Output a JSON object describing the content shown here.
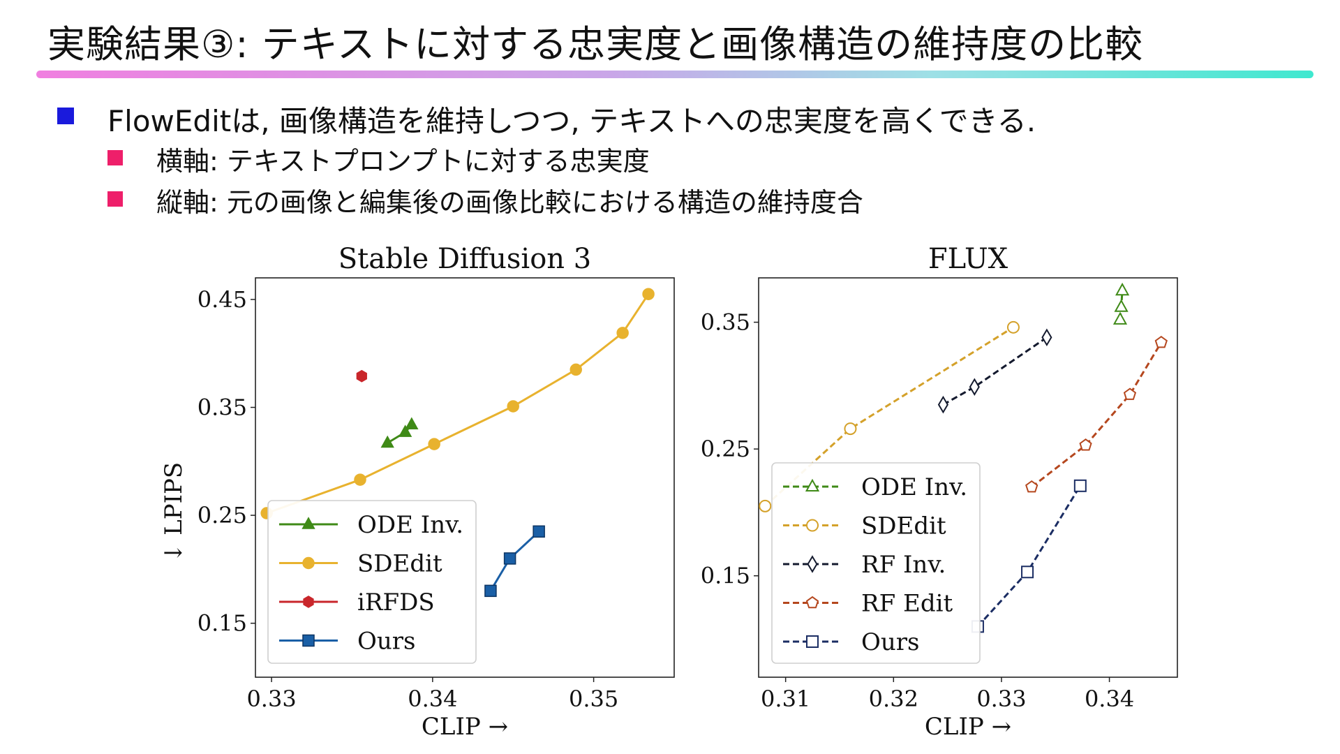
{
  "slide": {
    "title": "実験結果③: テキストに対する忠実度と画像構造の維持度の比較",
    "bullets": [
      "FlowEditは, 画像構造を維持しつつ, テキストへの忠実度を高くできる.",
      "横軸: テキストプロンプトに対する忠実度",
      "縦軸:  元の画像と編集後の画像比較における構造の維持度合"
    ]
  },
  "chart_data": [
    {
      "type": "line",
      "title": "Stable Diffusion 3",
      "xlabel": "CLIP →",
      "ylabel": "↓ LPIPS",
      "xlim": [
        0.329,
        0.355
      ],
      "ylim": [
        0.1,
        0.47
      ],
      "xticks": [
        0.33,
        0.34,
        0.35
      ],
      "yticks": [
        0.15,
        0.25,
        0.35,
        0.45
      ],
      "xtick_labels": [
        "0.33",
        "0.34",
        "0.35"
      ],
      "ytick_labels": [
        "0.15",
        "0.25",
        "0.35",
        "0.45"
      ],
      "legend_position": "lower-left",
      "series": [
        {
          "name": "ODE Inv.",
          "color": "#3f8a17",
          "marker": "triangle",
          "filled": true,
          "dashed": false,
          "x": [
            0.3372,
            0.3383,
            0.3387
          ],
          "y": [
            0.317,
            0.327,
            0.334
          ]
        },
        {
          "name": "SDEdit",
          "color": "#e8b22e",
          "marker": "circle",
          "filled": true,
          "dashed": false,
          "x": [
            0.3297,
            0.3355,
            0.3401,
            0.345,
            0.3489,
            0.3518,
            0.3534
          ],
          "y": [
            0.252,
            0.283,
            0.316,
            0.351,
            0.385,
            0.419,
            0.455
          ]
        },
        {
          "name": "iRFDS",
          "color": "#c9262b",
          "marker": "hexagon",
          "filled": true,
          "dashed": false,
          "x": [
            0.3356
          ],
          "y": [
            0.379
          ]
        },
        {
          "name": "Ours",
          "color": "#1a5fa6",
          "marker": "square",
          "filled": true,
          "dashed": false,
          "x": [
            0.3436,
            0.3448,
            0.3466
          ],
          "y": [
            0.18,
            0.21,
            0.235
          ]
        }
      ]
    },
    {
      "type": "line",
      "title": "FLUX",
      "xlabel": "CLIP →",
      "ylabel": "",
      "xlim": [
        0.3075,
        0.3463
      ],
      "ylim": [
        0.07,
        0.385
      ],
      "xticks": [
        0.31,
        0.32,
        0.33,
        0.34
      ],
      "yticks": [
        0.15,
        0.25,
        0.35
      ],
      "xtick_labels": [
        "0.31",
        "0.32",
        "0.33",
        "0.34"
      ],
      "ytick_labels": [
        "0.15",
        "0.25",
        "0.35"
      ],
      "legend_position": "lower-left",
      "series": [
        {
          "name": "ODE Inv.",
          "color": "#3f8a17",
          "marker": "triangle",
          "filled": false,
          "dashed": true,
          "x": [
            0.341,
            0.3411,
            0.3412
          ],
          "y": [
            0.352,
            0.362,
            0.375
          ]
        },
        {
          "name": "SDEdit",
          "color": "#d4a12a",
          "marker": "circle",
          "filled": false,
          "dashed": true,
          "x": [
            0.3081,
            0.316,
            0.3311
          ],
          "y": [
            0.205,
            0.266,
            0.346
          ]
        },
        {
          "name": "RF Inv.",
          "color": "#141a2e",
          "marker": "diamond",
          "filled": false,
          "dashed": true,
          "x": [
            0.3246,
            0.3275,
            0.3342
          ],
          "y": [
            0.285,
            0.299,
            0.338
          ]
        },
        {
          "name": "RF Edit",
          "color": "#b5471e",
          "marker": "pentagon",
          "filled": false,
          "dashed": true,
          "x": [
            0.3328,
            0.3378,
            0.3419,
            0.3448
          ],
          "y": [
            0.22,
            0.253,
            0.293,
            0.334
          ]
        },
        {
          "name": "Ours",
          "color": "#1b2d63",
          "marker": "square",
          "filled": false,
          "dashed": true,
          "x": [
            0.3278,
            0.3324,
            0.3373
          ],
          "y": [
            0.11,
            0.153,
            0.221
          ]
        }
      ]
    }
  ]
}
